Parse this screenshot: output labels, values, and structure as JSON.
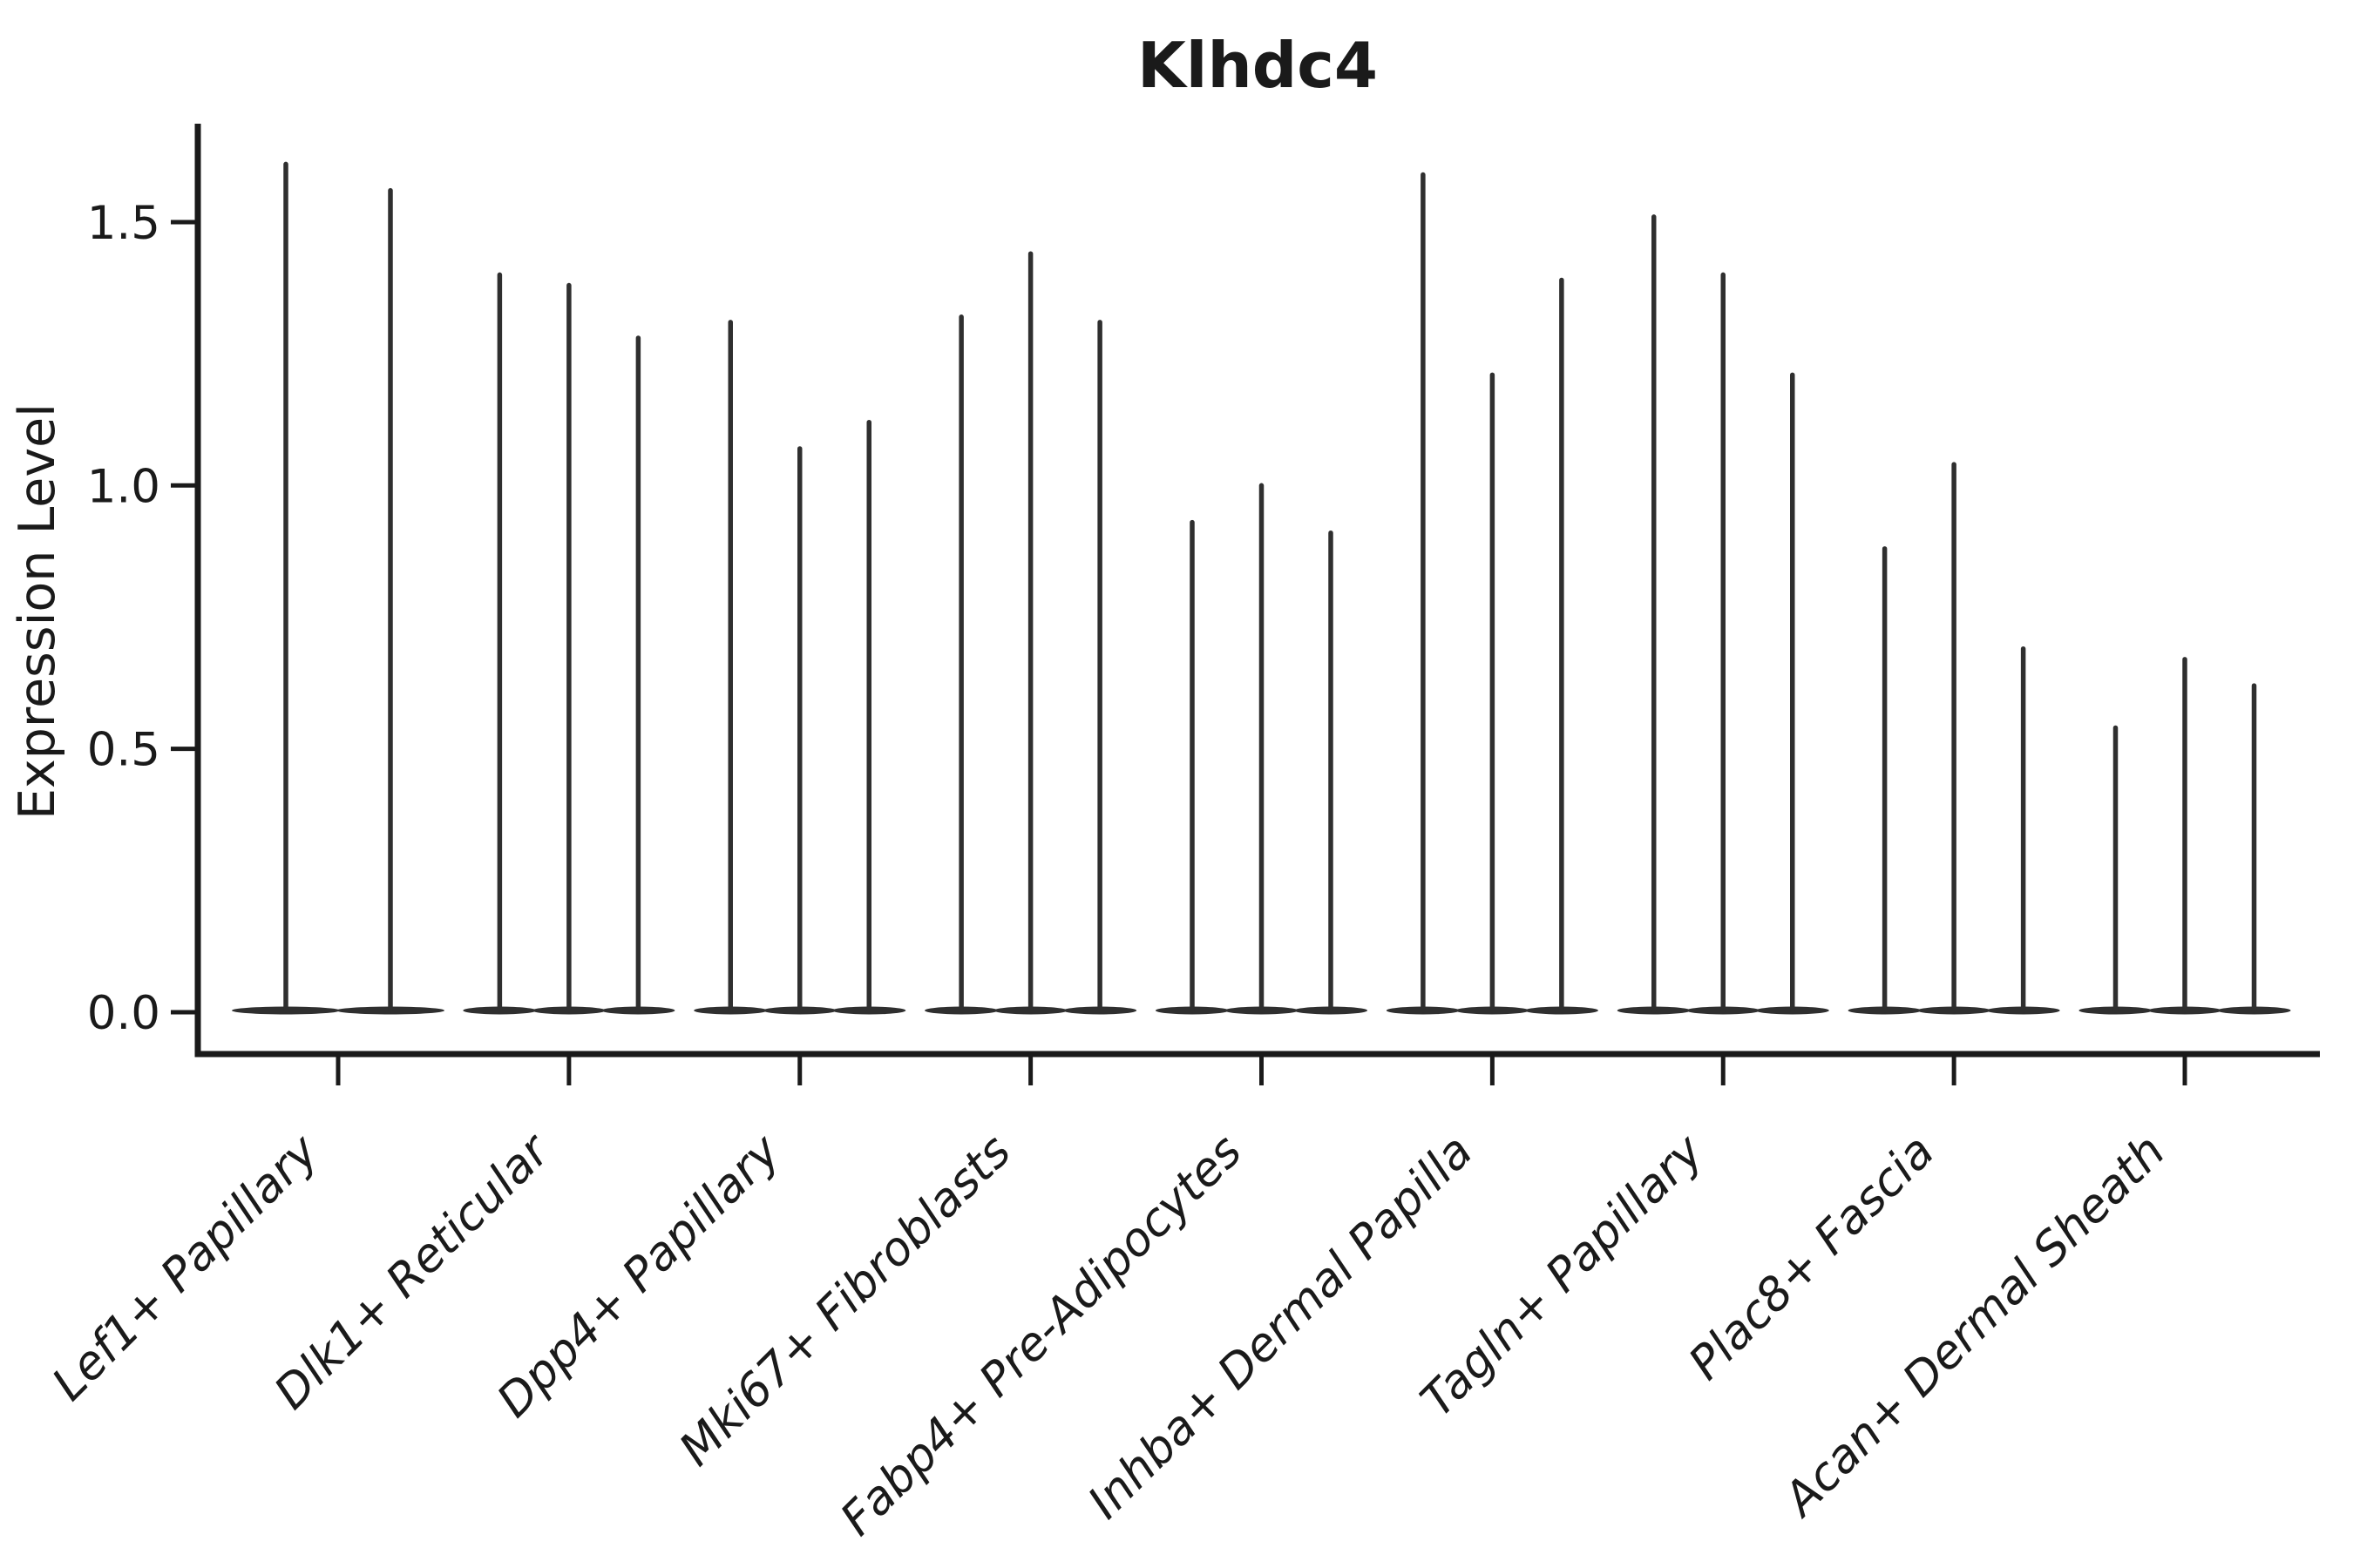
{
  "chart_data": {
    "type": "violin",
    "title": "Klhdc4",
    "ylabel": "Expression Level",
    "xlabel": "",
    "grid": false,
    "legend": "none",
    "ylim": [
      -0.08,
      1.69
    ],
    "y_ticks": [
      {
        "label": "0.0",
        "value": 0.0
      },
      {
        "label": "0.5",
        "value": 0.5
      },
      {
        "label": "1.0",
        "value": 1.0
      },
      {
        "label": "1.5",
        "value": 1.5
      }
    ],
    "categories": [
      "Lef1+ Papillary",
      "Dlk1+ Reticular",
      "Dpp4+ Papillary",
      "Mki67+ Fibroblasts",
      "Fabp4+ Pre-Adipocytes",
      "Inhba+ Dermal Papilla",
      "Tagln+ Papillary",
      "Plac8+ Fascia",
      "Acan+ Dermal Sheath"
    ],
    "violins": [
      {
        "category": "Lef1+ Papillary",
        "max_expression_per_violin": [
          1.61,
          1.56
        ]
      },
      {
        "category": "Dlk1+ Reticular",
        "max_expression_per_violin": [
          1.4,
          1.38,
          1.28
        ]
      },
      {
        "category": "Dpp4+ Papillary",
        "max_expression_per_violin": [
          1.31,
          1.07,
          1.12
        ]
      },
      {
        "category": "Mki67+ Fibroblasts",
        "max_expression_per_violin": [
          1.32,
          1.44,
          1.31
        ]
      },
      {
        "category": "Fabp4+ Pre-Adipocytes",
        "max_expression_per_violin": [
          0.93,
          1.0,
          0.91
        ]
      },
      {
        "category": "Inhba+ Dermal Papilla",
        "max_expression_per_violin": [
          1.59,
          1.21,
          1.39
        ]
      },
      {
        "category": "Tagln+ Papillary",
        "max_expression_per_violin": [
          1.51,
          1.4,
          1.21
        ]
      },
      {
        "category": "Plac8+ Fascia",
        "max_expression_per_violin": [
          0.88,
          1.04,
          0.69
        ]
      },
      {
        "category": "Acan+ Dermal Sheath",
        "max_expression_per_violin": [
          0.54,
          0.67,
          0.62
        ]
      }
    ],
    "violin_shape_note": "each violin is a flat lens at expression 0 with a thin vertical spike up to its max value",
    "colors": {
      "ink": "#1a1a1a",
      "violin": "#2f2f2f",
      "background": "#ffffff"
    }
  }
}
